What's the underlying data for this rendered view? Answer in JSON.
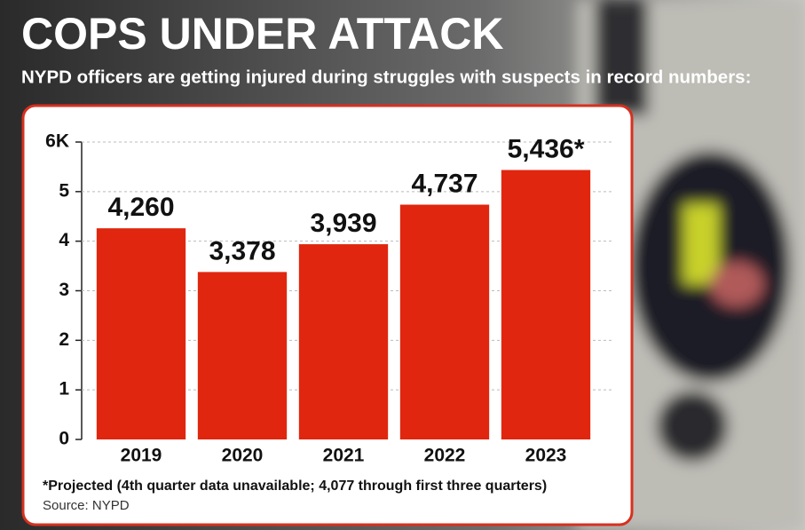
{
  "chart_data": {
    "type": "bar",
    "title": "COPS UNDER ATTACK",
    "subtitle": "NYPD officers are getting injured during struggles with suspects in record numbers:",
    "categories": [
      "2019",
      "2020",
      "2021",
      "2022",
      "2023"
    ],
    "values": [
      4.26,
      3.378,
      3.939,
      4.737,
      5.436
    ],
    "value_labels": [
      "4,260",
      "3,378",
      "3,939",
      "4,737",
      "5,436*"
    ],
    "color": "#e0260f",
    "ylim": [
      0,
      6
    ],
    "yticks": [
      0,
      1,
      2,
      3,
      4,
      5,
      {
        "value": 6,
        "label": "6K"
      }
    ],
    "grid": true,
    "footnote": "*Projected (4th quarter data unavailable; 4,077 through first three quarters)",
    "source": "Source: NYPD"
  }
}
